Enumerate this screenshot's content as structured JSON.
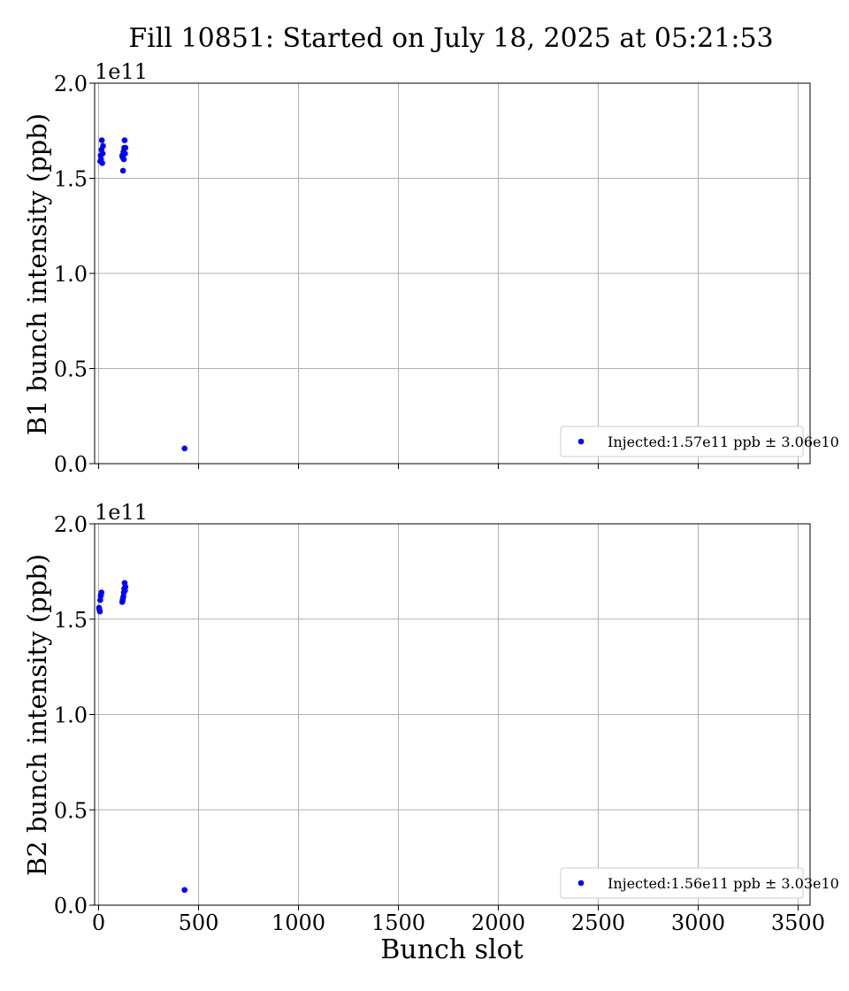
{
  "figure": {
    "title": "Fill 10851: Started on July 18, 2025 at 05:21:53",
    "xlabel": "Bunch slot"
  },
  "chart_data": [
    {
      "type": "scatter",
      "ylabel": "B1 bunch intensity (ppb)",
      "offset_label": "1e11",
      "xlim": [
        -20,
        3560
      ],
      "ylim": [
        0,
        200000000000.0
      ],
      "x_ticks": [
        0,
        500,
        1000,
        1500,
        2000,
        2500,
        3000,
        3500
      ],
      "x_tick_labels": [],
      "y_ticks": [
        0,
        50000000000.0,
        100000000000.0,
        150000000000.0,
        200000000000.0
      ],
      "y_tick_labels": [
        "0.0",
        "0.5",
        "1.0",
        "1.5",
        "2.0"
      ],
      "grid": true,
      "legend_position": "lower-right",
      "series": [
        {
          "name": "Injected:1.57e11 ppb ± 3.06e10",
          "color": "#0000ff",
          "points": [
            [
              8,
              159000000000.0
            ],
            [
              10,
              162000000000.0
            ],
            [
              12,
              160000000000.0
            ],
            [
              14,
              165000000000.0
            ],
            [
              16,
              170000000000.0
            ],
            [
              18,
              158000000000.0
            ],
            [
              20,
              163000000000.0
            ],
            [
              22,
              167000000000.0
            ],
            [
              118,
              162000000000.0
            ],
            [
              120,
              161000000000.0
            ],
            [
              122,
              154000000000.0
            ],
            [
              124,
              164000000000.0
            ],
            [
              126,
              160000000000.0
            ],
            [
              128,
              166000000000.0
            ],
            [
              130,
              170000000000.0
            ],
            [
              132,
              163000000000.0
            ],
            [
              134,
              166000000000.0
            ],
            [
              430,
              8000000000.0
            ]
          ]
        }
      ]
    },
    {
      "type": "scatter",
      "ylabel": "B2 bunch intensity (ppb)",
      "offset_label": "1e11",
      "xlim": [
        -20,
        3560
      ],
      "ylim": [
        0,
        200000000000.0
      ],
      "x_ticks": [
        0,
        500,
        1000,
        1500,
        2000,
        2500,
        3000,
        3500
      ],
      "x_tick_labels": [
        "0",
        "500",
        "1000",
        "1500",
        "2000",
        "2500",
        "3000",
        "3500"
      ],
      "y_ticks": [
        0,
        50000000000.0,
        100000000000.0,
        150000000000.0,
        200000000000.0
      ],
      "y_tick_labels": [
        "0.0",
        "0.5",
        "1.0",
        "1.5",
        "2.0"
      ],
      "grid": true,
      "legend_position": "lower-right",
      "series": [
        {
          "name": "Injected:1.56e11 ppb ± 3.03e10",
          "color": "#0000ff",
          "points": [
            [
              2,
              156000000000.0
            ],
            [
              4,
              155000000000.0
            ],
            [
              6,
              154000000000.0
            ],
            [
              8,
              160000000000.0
            ],
            [
              10,
              162000000000.0
            ],
            [
              12,
              163000000000.0
            ],
            [
              14,
              164000000000.0
            ],
            [
              118,
              159000000000.0
            ],
            [
              120,
              160000000000.0
            ],
            [
              122,
              161000000000.0
            ],
            [
              124,
              162000000000.0
            ],
            [
              126,
              164000000000.0
            ],
            [
              128,
              166000000000.0
            ],
            [
              130,
              169000000000.0
            ],
            [
              132,
              165000000000.0
            ],
            [
              134,
              167000000000.0
            ],
            [
              430,
              8000000000.0
            ]
          ]
        }
      ]
    }
  ]
}
